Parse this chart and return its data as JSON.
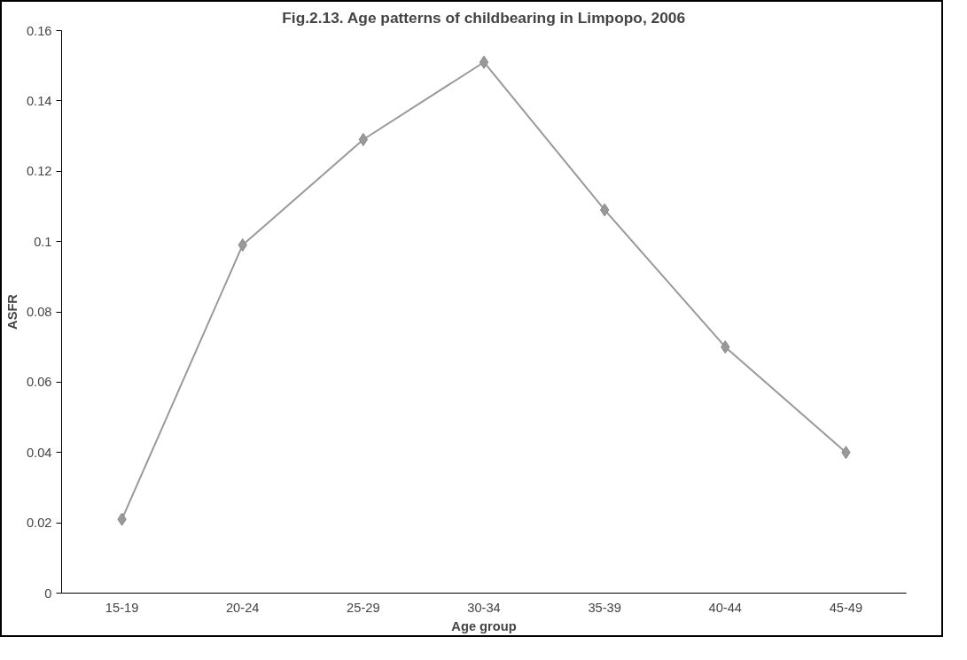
{
  "chart_data": {
    "type": "line",
    "title": "Fig.2.13. Age patterns of childbearing in Limpopo, 2006",
    "xlabel": "Age group",
    "ylabel": "ASFR",
    "categories": [
      "15-19",
      "20-24",
      "25-29",
      "30-34",
      "35-39",
      "40-44",
      "45-49"
    ],
    "series": [
      {
        "color": "#999999",
        "values": [
          0.021,
          0.099,
          0.129,
          0.151,
          0.109,
          0.07,
          0.04
        ]
      }
    ],
    "ylim": [
      0,
      0.16
    ],
    "yticks": [
      0,
      0.02,
      0.04,
      0.06,
      0.08,
      0.1,
      0.12,
      0.14,
      0.16
    ],
    "grid": false,
    "marker": "diamond",
    "line_style": "solid"
  }
}
